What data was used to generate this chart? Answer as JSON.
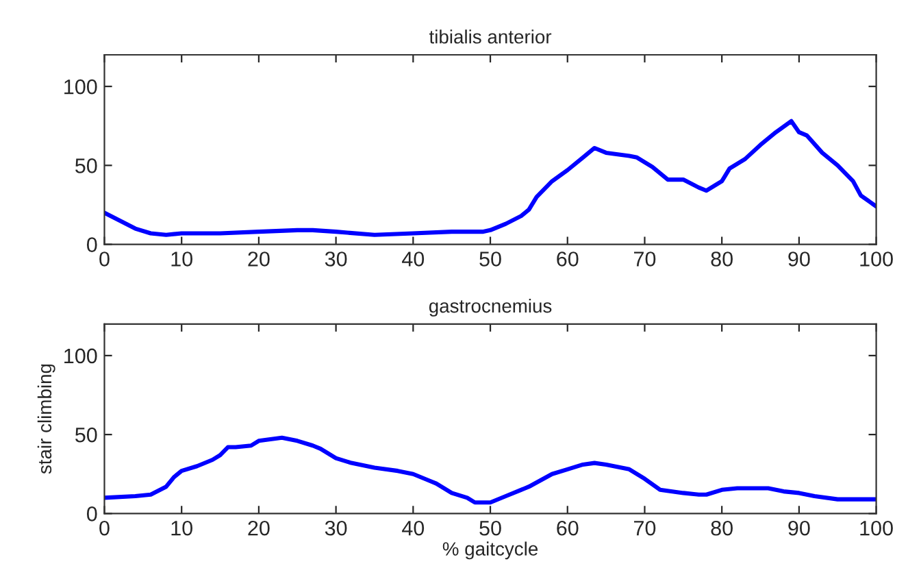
{
  "chart_data": [
    {
      "type": "line",
      "title": "tibialis anterior",
      "x": [
        0,
        2,
        4,
        6,
        8,
        10,
        15,
        20,
        25,
        27,
        30,
        35,
        40,
        45,
        49,
        50,
        52,
        54,
        55,
        56,
        58,
        60,
        62,
        63.5,
        65,
        68,
        69,
        71,
        73,
        75,
        77,
        78,
        80,
        81,
        83,
        85,
        87,
        89,
        90,
        91,
        93,
        95,
        96,
        97,
        98,
        100
      ],
      "series": [
        {
          "color": "#0000ff",
          "values": [
            20,
            15,
            10,
            7,
            6,
            7,
            7,
            8,
            9,
            9,
            8,
            6,
            7,
            8,
            8,
            9,
            13,
            18,
            22,
            30,
            40,
            47,
            55,
            61,
            58,
            56,
            55,
            49,
            41,
            41,
            36,
            34,
            40,
            48,
            54,
            63,
            71,
            78,
            71,
            69,
            58,
            50,
            45,
            40,
            31,
            24
          ]
        }
      ],
      "xlim": [
        0,
        100
      ],
      "ylim": [
        0,
        120
      ],
      "xticks": [
        0,
        10,
        20,
        30,
        40,
        50,
        60,
        70,
        80,
        90,
        100
      ],
      "yticks": [
        0,
        50,
        100
      ]
    },
    {
      "type": "line",
      "title": "gastrocnemius",
      "xlabel": "% gaitcycle",
      "ylabel": "stair climbing",
      "x": [
        0,
        4,
        6,
        8,
        9,
        10,
        12,
        14,
        15,
        16,
        17,
        19,
        20,
        23,
        25,
        27,
        28,
        30,
        32,
        35,
        38,
        40,
        42,
        43,
        45,
        47,
        48,
        50,
        52,
        55,
        58,
        60,
        62,
        63.5,
        65,
        68,
        70,
        72,
        75,
        77,
        78,
        80,
        82,
        86,
        88,
        90,
        92,
        95,
        100
      ],
      "series": [
        {
          "color": "#0000ff",
          "values": [
            10,
            11,
            12,
            17,
            23,
            27,
            30,
            34,
            37,
            42,
            42,
            43,
            46,
            48,
            46,
            43,
            41,
            35,
            32,
            29,
            27,
            25,
            21,
            19,
            13,
            10,
            7,
            7,
            11,
            17,
            25,
            28,
            31,
            32,
            31,
            28,
            22,
            15,
            13,
            12,
            12,
            15,
            16,
            16,
            14,
            13,
            11,
            9,
            9
          ]
        }
      ],
      "xlim": [
        0,
        100
      ],
      "ylim": [
        0,
        120
      ],
      "xticks": [
        0,
        10,
        20,
        30,
        40,
        50,
        60,
        70,
        80,
        90,
        100
      ],
      "yticks": [
        0,
        50,
        100
      ]
    }
  ]
}
